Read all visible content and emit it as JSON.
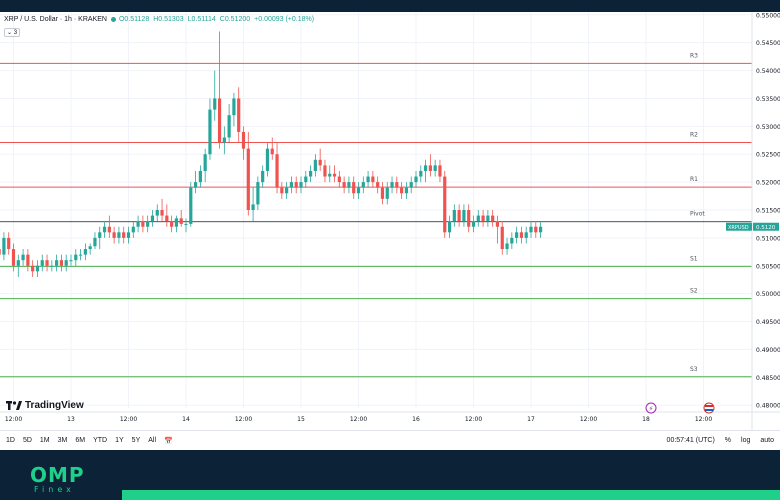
{
  "legend": {
    "symbol": "XRP / U.S. Dollar · 1h · KRAKEN",
    "o_label": "O",
    "o": "0.51128",
    "h_label": "H",
    "h": "0.51303",
    "l_label": "L",
    "l": "0.51114",
    "c_label": "C",
    "c": "0.51200",
    "change": "+0.00093 (+0.18%)",
    "indicators": "3"
  },
  "brand": {
    "tv": "TradingView",
    "omp": "OMP",
    "finex": "Finex"
  },
  "toolbar": {
    "ranges": [
      "1D",
      "5D",
      "1M",
      "3M",
      "6M",
      "YTD",
      "1Y",
      "5Y",
      "All"
    ],
    "time": "00:57:41 (UTC)",
    "percent": "%",
    "log": "log",
    "auto": "auto"
  },
  "colors": {
    "up": "#26a69a",
    "down": "#ef5350",
    "resistance": "#ef5350",
    "support": "#4caf50",
    "pivot": "#131722",
    "price_tag": "#26a69a"
  },
  "chart_data": {
    "type": "candlestick",
    "y_ticks": [
      "0.55000",
      "0.54500",
      "0.54000",
      "0.53500",
      "0.53000",
      "0.52500",
      "0.52000",
      "0.51500",
      "0.51000",
      "0.50500",
      "0.50000",
      "0.49500",
      "0.49000",
      "0.48500",
      "0.48000"
    ],
    "ylim": [
      0.4795,
      0.5505
    ],
    "x_ticks": [
      "12:00",
      "13",
      "12:00",
      "14",
      "12:00",
      "15",
      "12:00",
      "16",
      "12:00",
      "17",
      "12:00",
      "18",
      "12:00"
    ],
    "x_tick_hours": [
      -12,
      0,
      12,
      24,
      36,
      48,
      60,
      72,
      84,
      96,
      108,
      120,
      132
    ],
    "last_price_label": "XRPUSD",
    "last_price": "0.5120",
    "levels": [
      {
        "name": "R3",
        "value": 0.5413,
        "kind": "resistance"
      },
      {
        "name": "R2",
        "value": 0.5271,
        "kind": "resistance"
      },
      {
        "name": "R1",
        "value": 0.5191,
        "kind": "resistance"
      },
      {
        "name": "Pivot",
        "value": 0.5129,
        "kind": "pivot"
      },
      {
        "name": "S1",
        "value": 0.5049,
        "kind": "support"
      },
      {
        "name": "S2",
        "value": 0.4991,
        "kind": "support"
      },
      {
        "name": "S3",
        "value": 0.4851,
        "kind": "support"
      }
    ],
    "candles_ohlc": [
      [
        0.506,
        0.508,
        0.504,
        0.507
      ],
      [
        0.507,
        0.509,
        0.505,
        0.506
      ],
      [
        0.506,
        0.509,
        0.504,
        0.508
      ],
      [
        0.508,
        0.51,
        0.506,
        0.507
      ],
      [
        0.507,
        0.511,
        0.506,
        0.51
      ],
      [
        0.51,
        0.511,
        0.507,
        0.508
      ],
      [
        0.508,
        0.509,
        0.504,
        0.505
      ],
      [
        0.505,
        0.507,
        0.503,
        0.506
      ],
      [
        0.506,
        0.508,
        0.505,
        0.507
      ],
      [
        0.507,
        0.508,
        0.504,
        0.505
      ],
      [
        0.505,
        0.506,
        0.503,
        0.504
      ],
      [
        0.504,
        0.506,
        0.503,
        0.505
      ],
      [
        0.505,
        0.507,
        0.504,
        0.506
      ],
      [
        0.506,
        0.507,
        0.504,
        0.505
      ],
      [
        0.505,
        0.506,
        0.504,
        0.505
      ],
      [
        0.505,
        0.507,
        0.504,
        0.506
      ],
      [
        0.506,
        0.507,
        0.504,
        0.505
      ],
      [
        0.505,
        0.507,
        0.504,
        0.506
      ],
      [
        0.506,
        0.507,
        0.505,
        0.506
      ],
      [
        0.506,
        0.508,
        0.505,
        0.507
      ],
      [
        0.507,
        0.508,
        0.506,
        0.507
      ],
      [
        0.507,
        0.509,
        0.506,
        0.508
      ],
      [
        0.508,
        0.509,
        0.507,
        0.5085
      ],
      [
        0.5085,
        0.511,
        0.508,
        0.51
      ],
      [
        0.51,
        0.512,
        0.508,
        0.511
      ],
      [
        0.511,
        0.513,
        0.51,
        0.512
      ],
      [
        0.512,
        0.514,
        0.51,
        0.511
      ],
      [
        0.511,
        0.512,
        0.509,
        0.51
      ],
      [
        0.51,
        0.512,
        0.509,
        0.511
      ],
      [
        0.511,
        0.512,
        0.509,
        0.51
      ],
      [
        0.51,
        0.512,
        0.509,
        0.511
      ],
      [
        0.511,
        0.513,
        0.51,
        0.512
      ],
      [
        0.512,
        0.514,
        0.511,
        0.513
      ],
      [
        0.513,
        0.514,
        0.511,
        0.512
      ],
      [
        0.512,
        0.514,
        0.511,
        0.513
      ],
      [
        0.513,
        0.515,
        0.512,
        0.514
      ],
      [
        0.514,
        0.516,
        0.513,
        0.515
      ],
      [
        0.515,
        0.517,
        0.513,
        0.514
      ],
      [
        0.514,
        0.516,
        0.512,
        0.513
      ],
      [
        0.513,
        0.514,
        0.511,
        0.512
      ],
      [
        0.512,
        0.514,
        0.511,
        0.5135
      ],
      [
        0.5135,
        0.515,
        0.512,
        0.5125
      ],
      [
        0.5125,
        0.5135,
        0.511,
        0.5125
      ],
      [
        0.5125,
        0.52,
        0.512,
        0.519
      ],
      [
        0.519,
        0.522,
        0.518,
        0.52
      ],
      [
        0.52,
        0.523,
        0.519,
        0.522
      ],
      [
        0.522,
        0.526,
        0.52,
        0.525
      ],
      [
        0.525,
        0.535,
        0.524,
        0.533
      ],
      [
        0.533,
        0.54,
        0.531,
        0.535
      ],
      [
        0.535,
        0.547,
        0.526,
        0.527
      ],
      [
        0.527,
        0.53,
        0.525,
        0.528
      ],
      [
        0.528,
        0.534,
        0.527,
        0.532
      ],
      [
        0.532,
        0.536,
        0.53,
        0.535
      ],
      [
        0.535,
        0.537,
        0.527,
        0.529
      ],
      [
        0.529,
        0.53,
        0.524,
        0.526
      ],
      [
        0.526,
        0.529,
        0.514,
        0.515
      ],
      [
        0.515,
        0.519,
        0.513,
        0.516
      ],
      [
        0.516,
        0.521,
        0.515,
        0.52
      ],
      [
        0.52,
        0.523,
        0.519,
        0.522
      ],
      [
        0.522,
        0.527,
        0.521,
        0.526
      ],
      [
        0.526,
        0.528,
        0.524,
        0.525
      ],
      [
        0.525,
        0.527,
        0.518,
        0.519
      ],
      [
        0.519,
        0.52,
        0.517,
        0.518
      ],
      [
        0.518,
        0.52,
        0.517,
        0.519
      ],
      [
        0.519,
        0.521,
        0.518,
        0.52
      ],
      [
        0.52,
        0.521,
        0.518,
        0.519
      ],
      [
        0.519,
        0.521,
        0.518,
        0.52
      ],
      [
        0.52,
        0.522,
        0.519,
        0.521
      ],
      [
        0.521,
        0.523,
        0.52,
        0.522
      ],
      [
        0.522,
        0.525,
        0.521,
        0.524
      ],
      [
        0.524,
        0.526,
        0.522,
        0.523
      ],
      [
        0.523,
        0.524,
        0.52,
        0.521
      ],
      [
        0.521,
        0.523,
        0.52,
        0.5215
      ],
      [
        0.5215,
        0.523,
        0.52,
        0.521
      ],
      [
        0.521,
        0.522,
        0.519,
        0.52
      ],
      [
        0.52,
        0.521,
        0.518,
        0.519
      ],
      [
        0.519,
        0.521,
        0.518,
        0.52
      ],
      [
        0.52,
        0.521,
        0.517,
        0.518
      ],
      [
        0.518,
        0.52,
        0.517,
        0.519
      ],
      [
        0.519,
        0.521,
        0.518,
        0.52
      ],
      [
        0.52,
        0.522,
        0.519,
        0.521
      ],
      [
        0.521,
        0.522,
        0.519,
        0.52
      ],
      [
        0.52,
        0.521,
        0.518,
        0.519
      ],
      [
        0.519,
        0.52,
        0.516,
        0.517
      ],
      [
        0.517,
        0.52,
        0.516,
        0.519
      ],
      [
        0.519,
        0.521,
        0.518,
        0.52
      ],
      [
        0.52,
        0.521,
        0.518,
        0.519
      ],
      [
        0.519,
        0.52,
        0.517,
        0.518
      ],
      [
        0.518,
        0.52,
        0.517,
        0.519
      ],
      [
        0.519,
        0.521,
        0.518,
        0.52
      ],
      [
        0.52,
        0.522,
        0.519,
        0.521
      ],
      [
        0.521,
        0.523,
        0.52,
        0.522
      ],
      [
        0.522,
        0.524,
        0.52,
        0.523
      ],
      [
        0.523,
        0.525,
        0.521,
        0.522
      ],
      [
        0.522,
        0.524,
        0.521,
        0.523
      ],
      [
        0.523,
        0.524,
        0.52,
        0.521
      ],
      [
        0.521,
        0.522,
        0.51,
        0.511
      ],
      [
        0.511,
        0.514,
        0.51,
        0.513
      ],
      [
        0.513,
        0.516,
        0.512,
        0.515
      ],
      [
        0.515,
        0.516,
        0.512,
        0.513
      ],
      [
        0.513,
        0.516,
        0.512,
        0.515
      ],
      [
        0.515,
        0.516,
        0.511,
        0.512
      ],
      [
        0.512,
        0.514,
        0.511,
        0.513
      ],
      [
        0.513,
        0.515,
        0.512,
        0.514
      ],
      [
        0.514,
        0.515,
        0.512,
        0.513
      ],
      [
        0.513,
        0.515,
        0.512,
        0.514
      ],
      [
        0.514,
        0.515,
        0.512,
        0.513
      ],
      [
        0.513,
        0.514,
        0.509,
        0.512
      ],
      [
        0.512,
        0.513,
        0.507,
        0.508
      ],
      [
        0.508,
        0.51,
        0.507,
        0.509
      ],
      [
        0.509,
        0.511,
        0.508,
        0.51
      ],
      [
        0.51,
        0.512,
        0.509,
        0.511
      ],
      [
        0.511,
        0.512,
        0.509,
        0.51
      ],
      [
        0.51,
        0.512,
        0.509,
        0.511
      ],
      [
        0.511,
        0.513,
        0.51,
        0.512
      ],
      [
        0.512,
        0.513,
        0.51,
        0.511
      ],
      [
        0.511,
        0.513,
        0.51,
        0.512
      ]
    ]
  }
}
